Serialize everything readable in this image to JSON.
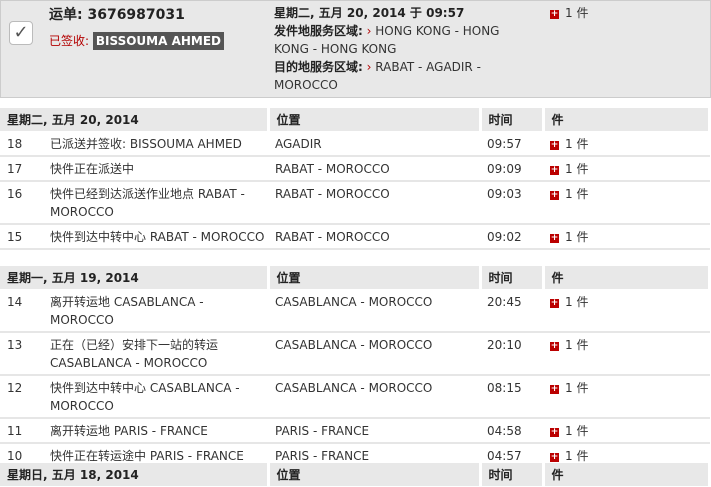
{
  "summary": {
    "waybill": "运单: 3676987031",
    "signed_label": "已签收:",
    "signer": "BISSOUMA AHMED",
    "datetime": "星期二, 五月 20, 2014 于 09:57",
    "origin_label": "发件地服务区域:",
    "origin": "HONG KONG - HONG KONG - HONG KONG",
    "dest_label": "目的地服务区域:",
    "dest": "RABAT - AGADIR - MOROCCO",
    "pieces": "1 件",
    "arrow": "›"
  },
  "columns": {
    "location": "位置",
    "time": "时间",
    "pieces": "件"
  },
  "days": [
    {
      "date": "星期二, 五月 20, 2014",
      "rows": [
        {
          "n": "18",
          "desc": "已派送并签收: BISSOUMA AHMED",
          "loc": "AGADIR",
          "time": "09:57",
          "pcs": "1 件"
        },
        {
          "n": "17",
          "desc": "快件正在派送中",
          "loc": "RABAT - MOROCCO",
          "time": "09:09",
          "pcs": "1 件"
        },
        {
          "n": "16",
          "desc": "快件已经到达派送作业地点 RABAT - MOROCCO",
          "loc": "RABAT - MOROCCO",
          "time": "09:03",
          "pcs": "1 件"
        },
        {
          "n": "15",
          "desc": "快件到达中转中心 RABAT - MOROCCO",
          "loc": "RABAT - MOROCCO",
          "time": "09:02",
          "pcs": "1 件"
        }
      ]
    },
    {
      "date": "星期一, 五月 19, 2014",
      "rows": [
        {
          "n": "14",
          "desc": "离开转运地 CASABLANCA - MOROCCO",
          "loc": "CASABLANCA - MOROCCO",
          "time": "20:45",
          "pcs": "1 件"
        },
        {
          "n": "13",
          "desc": "正在（已经）安排下一站的转运 CASABLANCA - MOROCCO",
          "loc": "CASABLANCA - MOROCCO",
          "time": "20:10",
          "pcs": "1 件"
        },
        {
          "n": "12",
          "desc": "快件到达中转中心 CASABLANCA - MOROCCO",
          "loc": "CASABLANCA - MOROCCO",
          "time": "08:15",
          "pcs": "1 件"
        },
        {
          "n": "11",
          "desc": "离开转运地 PARIS - FRANCE",
          "loc": "PARIS - FRANCE",
          "time": "04:58",
          "pcs": "1 件"
        },
        {
          "n": "10",
          "desc": "快件正在转运途中 PARIS - FRANCE",
          "loc": "PARIS - FRANCE",
          "time": "04:57",
          "pcs": "1 件"
        }
      ]
    },
    {
      "date": "星期日, 五月 18, 2014",
      "rows": []
    }
  ]
}
